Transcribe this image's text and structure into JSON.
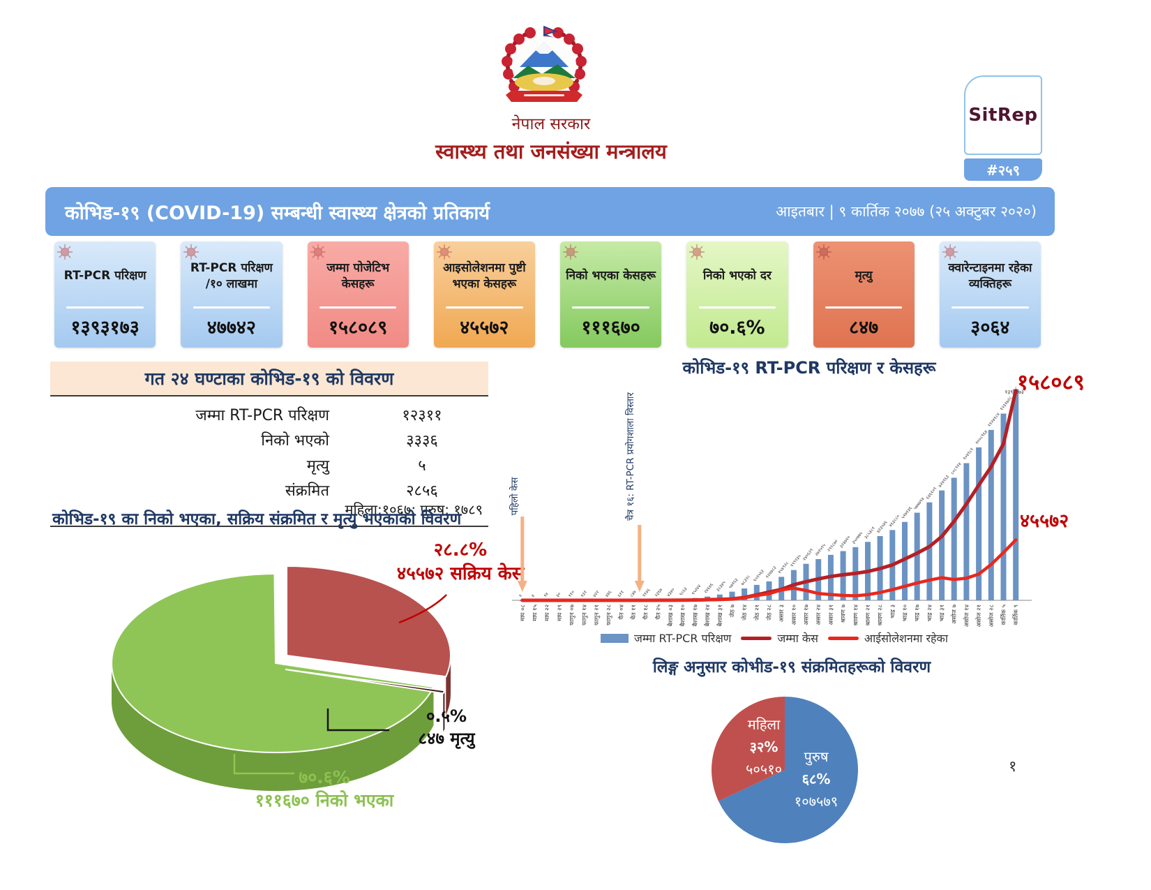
{
  "header": {
    "gov_name": "नेपाल सरकार",
    "ministry_name": "स्वास्थ्य तथा जनसंख्या मन्त्रालय",
    "sitrep_label": "SitRep",
    "sitrep_number": "#२५९"
  },
  "title_bar": {
    "title": "कोभिड-१९  (COVID-19) सम्बन्धी स्वास्थ्य क्षेत्रको प्रतिकार्य",
    "date": "आइतबार | ९ कार्तिक २०७७ (२५ अक्टुबर २०२०)"
  },
  "stat_cards": [
    {
      "label": "RT-PCR परिक्षण",
      "value": "१३९३१७३",
      "theme": "blue"
    },
    {
      "label": "RT-PCR परिक्षण /१० लाखमा",
      "value": "४७७४२",
      "theme": "blue"
    },
    {
      "label": "जम्मा पोजेटिभ केसहरू",
      "value": "१५८०८९",
      "theme": "red"
    },
    {
      "label": "आइसोलेशनमा पुष्टी भएका केसहरू",
      "value": "४५५७२",
      "theme": "orange"
    },
    {
      "label": "निको भएका केसहरू",
      "value": "१११६७०",
      "theme": "green"
    },
    {
      "label": "निको भएको दर",
      "value": "७०.६%",
      "theme": "lightgreen"
    },
    {
      "label": "मृत्यु",
      "value": "८४७",
      "theme": "salmon"
    },
    {
      "label": "क्वारेन्टाइनमा रहेका व्यक्तिहरू",
      "value": "३०६४",
      "theme": "blue"
    }
  ],
  "last24": {
    "title": "गत २४ घण्टाका कोभिड-१९ को विवरण",
    "rows": [
      {
        "label": "जम्मा RT-PCR परिक्षण",
        "value": "१२३११"
      },
      {
        "label": "निको भएको",
        "value": "३३३६"
      },
      {
        "label": "मृत्यु",
        "value": "५"
      },
      {
        "label": "संक्रमित",
        "value": "२८५६",
        "sub": "महिला:१०६७; पुरुष: १७८९"
      }
    ]
  },
  "page_number": "१",
  "colors": {
    "header_blue": "#6FA3E3",
    "navy": "#1F3864",
    "accent_red": "#C00000",
    "arrow_orange": "#F5B183"
  },
  "chart_data": [
    {
      "id": "status-pie",
      "type": "pie",
      "title": "कोभिड-१९  का निको भएका, सक्रिय संक्रमित र मृत्यु भएकाको विवरण",
      "slices": [
        {
          "name": "निको भएका",
          "pct": 70.6,
          "pct_label": "७०.६%",
          "value_label": "१११६७०",
          "callout": "१११६७० निको भएका",
          "color": "#8FC556",
          "wall": "#6E9E3C"
        },
        {
          "name": "सक्रिय केस",
          "pct": 28.8,
          "pct_label": "२८.८%",
          "value_label": "४५५७२",
          "callout": "४५५७२ सक्रिय केस",
          "color": "#B8524F",
          "wall": "#7E322F"
        },
        {
          "name": "मृत्यु",
          "pct": 0.5,
          "pct_label": "०.५%",
          "value_label": "८४७",
          "callout": "८४७ मृत्यु",
          "color": "#3F1013",
          "wall": "#2A0A0C"
        }
      ]
    },
    {
      "id": "tests-chart",
      "type": "bar+line",
      "title": "कोभिड-१९  RT-PCR परिक्षण र केसहरू",
      "categories": [
        "माघ ०८",
        "माघ १५",
        "माघ २२",
        "माघ २९",
        "फागुन ०७",
        "फागुन १४",
        "फागुन २१",
        "फागुन २८",
        "चैत ०४",
        "चैत ११",
        "चैत १८",
        "चैत २५",
        "बैशाख ०३",
        "बैशाख १०",
        "बैशाख १७",
        "बैशाख २४",
        "बैशाख ३१",
        "जेठ ७",
        "जेठ १४",
        "जेठ २१",
        "जेठ २८",
        "असार ३",
        "असार १०",
        "असार १७",
        "असार २४",
        "असार ३१",
        "श्रावण ७",
        "श्रावण १४",
        "श्रावण २१",
        "श्रावण २८",
        "भाद्र ३",
        "भाद्र १०",
        "भाद्र १७",
        "भाद्र २४",
        "भाद्र ३१",
        "असोज ७",
        "असोज १४",
        "असोज २१",
        "असोज २८",
        "कार्तिक ५",
        "कार्तिक ९"
      ],
      "ylim_left": [
        0,
        1400000
      ],
      "ylim_right": [
        0,
        160000
      ],
      "series": [
        {
          "name": "जम्मा RT-PCR परिक्षण",
          "type": "bar",
          "axis": "left",
          "color": "#6B93C4",
          "values": [
            1,
            4,
            14,
            30,
            110,
            131,
            422,
            446,
            611,
            847,
            1146,
            2367,
            4340,
            9863,
            15244,
            24646,
            38345,
            57163,
            78328,
            101563,
            124783,
            154928,
            199935,
            240629,
            271595,
            299870,
            324710,
            350775,
            385381,
            423546,
            463880,
            517136,
            577794,
            646109,
            724963,
            808914,
            904981,
            1008964,
            1124184,
            1231728,
            1393173
          ]
        },
        {
          "name": "जम्मा केस",
          "type": "line",
          "axis": "right",
          "color": "#B42025",
          "end_label": "१५८०८९",
          "values": [
            1,
            1,
            1,
            1,
            1,
            1,
            2,
            2,
            5,
            9,
            16,
            31,
            49,
            110,
            217,
            457,
            682,
            1042,
            2099,
            4086,
            6211,
            8274,
            11755,
            14046,
            16168,
            17994,
            19273,
            20332,
            21750,
            23948,
            26660,
            31117,
            35529,
            40529,
            48138,
            59573,
            72654,
            86823,
            100676,
            117996,
            158089
          ]
        },
        {
          "name": "आईसोलेशनमा रहेका",
          "type": "line",
          "axis": "right",
          "color": "#E8281E",
          "end_label": "४५५७२",
          "values": [
            0,
            0,
            0,
            0,
            0,
            0,
            1,
            2,
            4,
            8,
            15,
            30,
            48,
            100,
            200,
            420,
            610,
            950,
            1900,
            3600,
            5000,
            7800,
            9085,
            7395,
            5184,
            4382,
            3676,
            3416,
            4250,
            5874,
            8065,
            10587,
            13063,
            15220,
            17035,
            15680,
            16690,
            19745,
            27000,
            36000,
            45572
          ]
        }
      ],
      "annotations": [
        {
          "text": "पहिलो केस",
          "x_index": 0
        },
        {
          "text": "चैत्र १६: RT-PCR प्रयोगशाला विस्तार",
          "x_index": 9.5
        }
      ],
      "legend": [
        "जम्मा RT-PCR परिक्षण",
        "जम्मा केस",
        "आईसोलेशनमा रहेका"
      ]
    },
    {
      "id": "gender-pie",
      "type": "pie",
      "title": "लिङ्ग अनुसार कोभीड-१९  संक्रमितहरूको विवरण",
      "slices": [
        {
          "name": "पुरुष",
          "pct": 68,
          "pct_label": "६८%",
          "value_label": "१०७५७९",
          "color": "#4F81BD"
        },
        {
          "name": "महिला",
          "pct": 32,
          "pct_label": "३२%",
          "value_label": "५०५१०",
          "color": "#C0504D"
        }
      ]
    }
  ]
}
